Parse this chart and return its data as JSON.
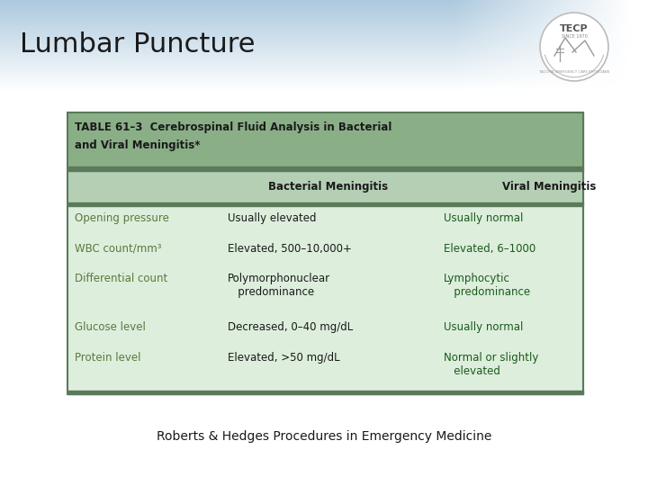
{
  "title": "Lumbar Puncture",
  "title_fontsize": 22,
  "title_color": "#1a1a1a",
  "table_title_line1": "TABLE 61–3  Cerebrospinal Fluid Analysis in Bacterial",
  "table_title_line2": "and Viral Meningitis*",
  "table_title_color": "#1a1a1a",
  "table_title_bg": "#8aaf87",
  "table_header_bg": "#b5cfb5",
  "table_separator_color": "#5a7a5a",
  "table_body_bg": "#ddeedd",
  "label_color": "#5a7a3a",
  "bacterial_color": "#1a1a1a",
  "viral_color": "#1a5a1a",
  "col_header_color": "#1a1a1a",
  "header_blue_start": "#adc8dc",
  "rows": [
    {
      "label": "Opening pressure",
      "bacterial": "Usually elevated",
      "viral": "Usually normal"
    },
    {
      "label": "WBC count/mm³",
      "bacterial": "Elevated, 500–10,000+",
      "viral": "Elevated, 6–1000"
    },
    {
      "label": "Differential count",
      "bacterial": "Polymorphonuclear\n   predominance",
      "viral": "Lymphocytic\n   predominance"
    },
    {
      "label": "Glucose level",
      "bacterial": "Decreased, 0–40 mg/dL",
      "viral": "Usually normal"
    },
    {
      "label": "Protein level",
      "bacterial": "Elevated, >50 mg/dL",
      "viral": "Normal or slightly\n   elevated"
    }
  ],
  "footer_text": "Roberts & Hedges Procedures in Emergency Medicine",
  "footer_fontsize": 10,
  "bg_color": "#ffffff"
}
